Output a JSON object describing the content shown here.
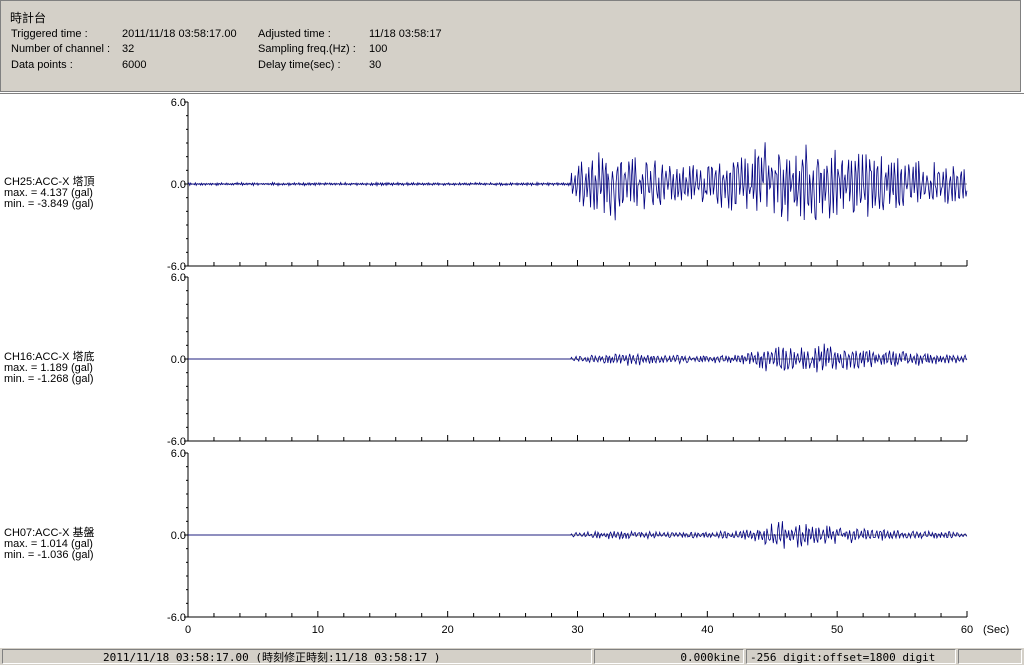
{
  "header": {
    "title": "時計台",
    "triggered_label": "Triggered time :",
    "triggered_value": "2011/11/18 03:58:17.00",
    "channels_label": "Number of channel :",
    "channels_value": "32",
    "datapoints_label": "Data points :",
    "datapoints_value": "6000",
    "adjusted_label": "Adjusted time :",
    "adjusted_value": "11/18 03:58:17",
    "sampling_label": "Sampling freq.(Hz) :",
    "sampling_value": "100",
    "delay_label": "Delay time(sec) :",
    "delay_value": "30"
  },
  "statusbar": {
    "time": "2011/11/18 03:58:17.00  (時刻修正時刻:11/18 03:58:17  )",
    "velocity": "0.000kine",
    "digit": "-256 digit:offset=1800 digit"
  },
  "chart_data": {
    "type": "line",
    "x_unit": "(Sec)",
    "xlim": [
      0,
      60
    ],
    "x_ticks": [
      "0",
      "10",
      "20",
      "30",
      "40",
      "50",
      "60"
    ],
    "y_ticks": [
      "6.0",
      "0.0",
      "-6.0"
    ],
    "ylim": [
      -6,
      6
    ],
    "color": "#000080",
    "trigger_onset_sec": 29.5,
    "series": [
      {
        "name": "CH25:ACC-X 塔頂",
        "max_text": "max. = 4.137 (gal)",
        "min_text": "min. = -3.849 (gal)",
        "max": 4.137,
        "min": -3.849,
        "pre_noise": 0.08,
        "envelope": [
          [
            29.5,
            0.8
          ],
          [
            31,
            1.9
          ],
          [
            33,
            2.4
          ],
          [
            35,
            1.9
          ],
          [
            37,
            1.2
          ],
          [
            40,
            1.4
          ],
          [
            43,
            1.9
          ],
          [
            45,
            2.9
          ],
          [
            47,
            2.4
          ],
          [
            48.5,
            2.6
          ],
          [
            50,
            2.1
          ],
          [
            52,
            2.2
          ],
          [
            55,
            1.7
          ],
          [
            58,
            1.5
          ],
          [
            60,
            1.2
          ]
        ]
      },
      {
        "name": "CH16:ACC-X 塔底",
        "max_text": "max. = 1.189 (gal)",
        "min_text": "min. = -1.268 (gal)",
        "max": 1.189,
        "min": -1.268,
        "pre_noise": 0.0,
        "envelope": [
          [
            29.5,
            0.15
          ],
          [
            32,
            0.3
          ],
          [
            34,
            0.45
          ],
          [
            36,
            0.3
          ],
          [
            40,
            0.25
          ],
          [
            43,
            0.4
          ],
          [
            45,
            0.9
          ],
          [
            47,
            0.8
          ],
          [
            49.5,
            1.0
          ],
          [
            51,
            0.7
          ],
          [
            53,
            0.6
          ],
          [
            56,
            0.45
          ],
          [
            60,
            0.3
          ]
        ]
      },
      {
        "name": "CH07:ACC-X 基盤",
        "max_text": "max. = 1.014 (gal)",
        "min_text": "min. = -1.036 (gal)",
        "max": 1.014,
        "min": -1.036,
        "pre_noise": 0.0,
        "envelope": [
          [
            29.5,
            0.15
          ],
          [
            33,
            0.3
          ],
          [
            36,
            0.2
          ],
          [
            40,
            0.2
          ],
          [
            43,
            0.35
          ],
          [
            45,
            0.9
          ],
          [
            47,
            0.85
          ],
          [
            49,
            0.7
          ],
          [
            51,
            0.5
          ],
          [
            55,
            0.3
          ],
          [
            60,
            0.2
          ]
        ]
      }
    ]
  }
}
